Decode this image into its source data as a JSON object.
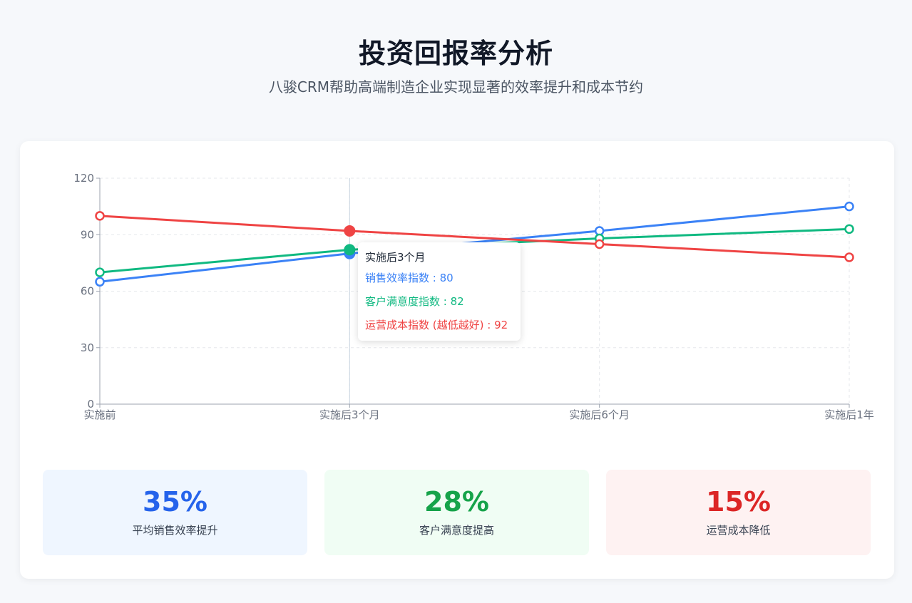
{
  "header": {
    "title": "投资回报率分析",
    "subtitle": "八骏CRM帮助高端制造企业实现显著的效率提升和成本节约"
  },
  "chart_data": {
    "type": "line",
    "categories": [
      "实施前",
      "实施后3个月",
      "实施后6个月",
      "实施后1年"
    ],
    "series": [
      {
        "name": "销售效率指数",
        "values": [
          65,
          80,
          92,
          105
        ],
        "color": "#3b82f6"
      },
      {
        "name": "客户满意度指数",
        "values": [
          70,
          82,
          88,
          93
        ],
        "color": "#10b981"
      },
      {
        "name": "运营成本指数 (越低越好)",
        "values": [
          100,
          92,
          85,
          78
        ],
        "color": "#ef4444"
      }
    ],
    "ylim": [
      0,
      120
    ],
    "yticks": [
      0,
      30,
      60,
      90,
      120
    ],
    "grid": true,
    "highlight_index": 1
  },
  "tooltip": {
    "title": "实施后3个月",
    "rows": [
      {
        "text": "销售效率指数 : 80",
        "color": "#3b82f6"
      },
      {
        "text": "客户满意度指数 : 82",
        "color": "#10b981"
      },
      {
        "text": "运营成本指数 (越低越好) : 92",
        "color": "#ef4444"
      }
    ]
  },
  "stats": [
    {
      "value": "35%",
      "label": "平均销售效率提升",
      "color": "#2563eb",
      "bg": "#eff6ff"
    },
    {
      "value": "28%",
      "label": "客户满意度提高",
      "color": "#16a34a",
      "bg": "#f0fdf4"
    },
    {
      "value": "15%",
      "label": "运营成本降低",
      "color": "#dc2626",
      "bg": "#fef2f2"
    }
  ]
}
